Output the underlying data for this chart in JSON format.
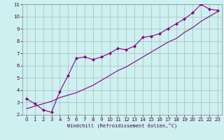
{
  "background_color": "#cdf0f0",
  "grid_color": "#aabbbb",
  "line_color": "#880088",
  "xlim": [
    -0.5,
    23.5
  ],
  "ylim": [
    2,
    11
  ],
  "xticks": [
    0,
    1,
    2,
    3,
    4,
    5,
    6,
    7,
    8,
    9,
    10,
    11,
    12,
    13,
    14,
    15,
    16,
    17,
    18,
    19,
    20,
    21,
    22,
    23
  ],
  "yticks": [
    2,
    3,
    4,
    5,
    6,
    7,
    8,
    9,
    10,
    11
  ],
  "xlabel": "Windchill (Refroidissement éolien,°C)",
  "line1_x": [
    0,
    1,
    2,
    3,
    4,
    5,
    6,
    7,
    8,
    9,
    10,
    11,
    12,
    13,
    14,
    15,
    16,
    17,
    18,
    19,
    20,
    21,
    22,
    23
  ],
  "line1_y": [
    3.3,
    2.9,
    2.4,
    2.2,
    3.9,
    5.2,
    6.6,
    6.7,
    6.5,
    6.7,
    7.0,
    7.4,
    7.3,
    7.6,
    8.3,
    8.4,
    8.6,
    9.0,
    9.4,
    9.8,
    10.3,
    11.0,
    10.6,
    10.5
  ],
  "line2_x": [
    0,
    1,
    2,
    3,
    4,
    5,
    6,
    7,
    8,
    9,
    10,
    11,
    12,
    13,
    14,
    15,
    16,
    17,
    18,
    19,
    20,
    21,
    22,
    23
  ],
  "line2_y": [
    2.5,
    2.7,
    2.9,
    3.1,
    3.4,
    3.6,
    3.8,
    4.1,
    4.4,
    4.8,
    5.2,
    5.6,
    5.9,
    6.3,
    6.7,
    7.1,
    7.5,
    7.9,
    8.2,
    8.7,
    9.1,
    9.6,
    10.0,
    10.4
  ],
  "tick_fontsize": 5,
  "xlabel_fontsize": 5,
  "tick_color": "#440044",
  "xlabel_color": "#440044"
}
